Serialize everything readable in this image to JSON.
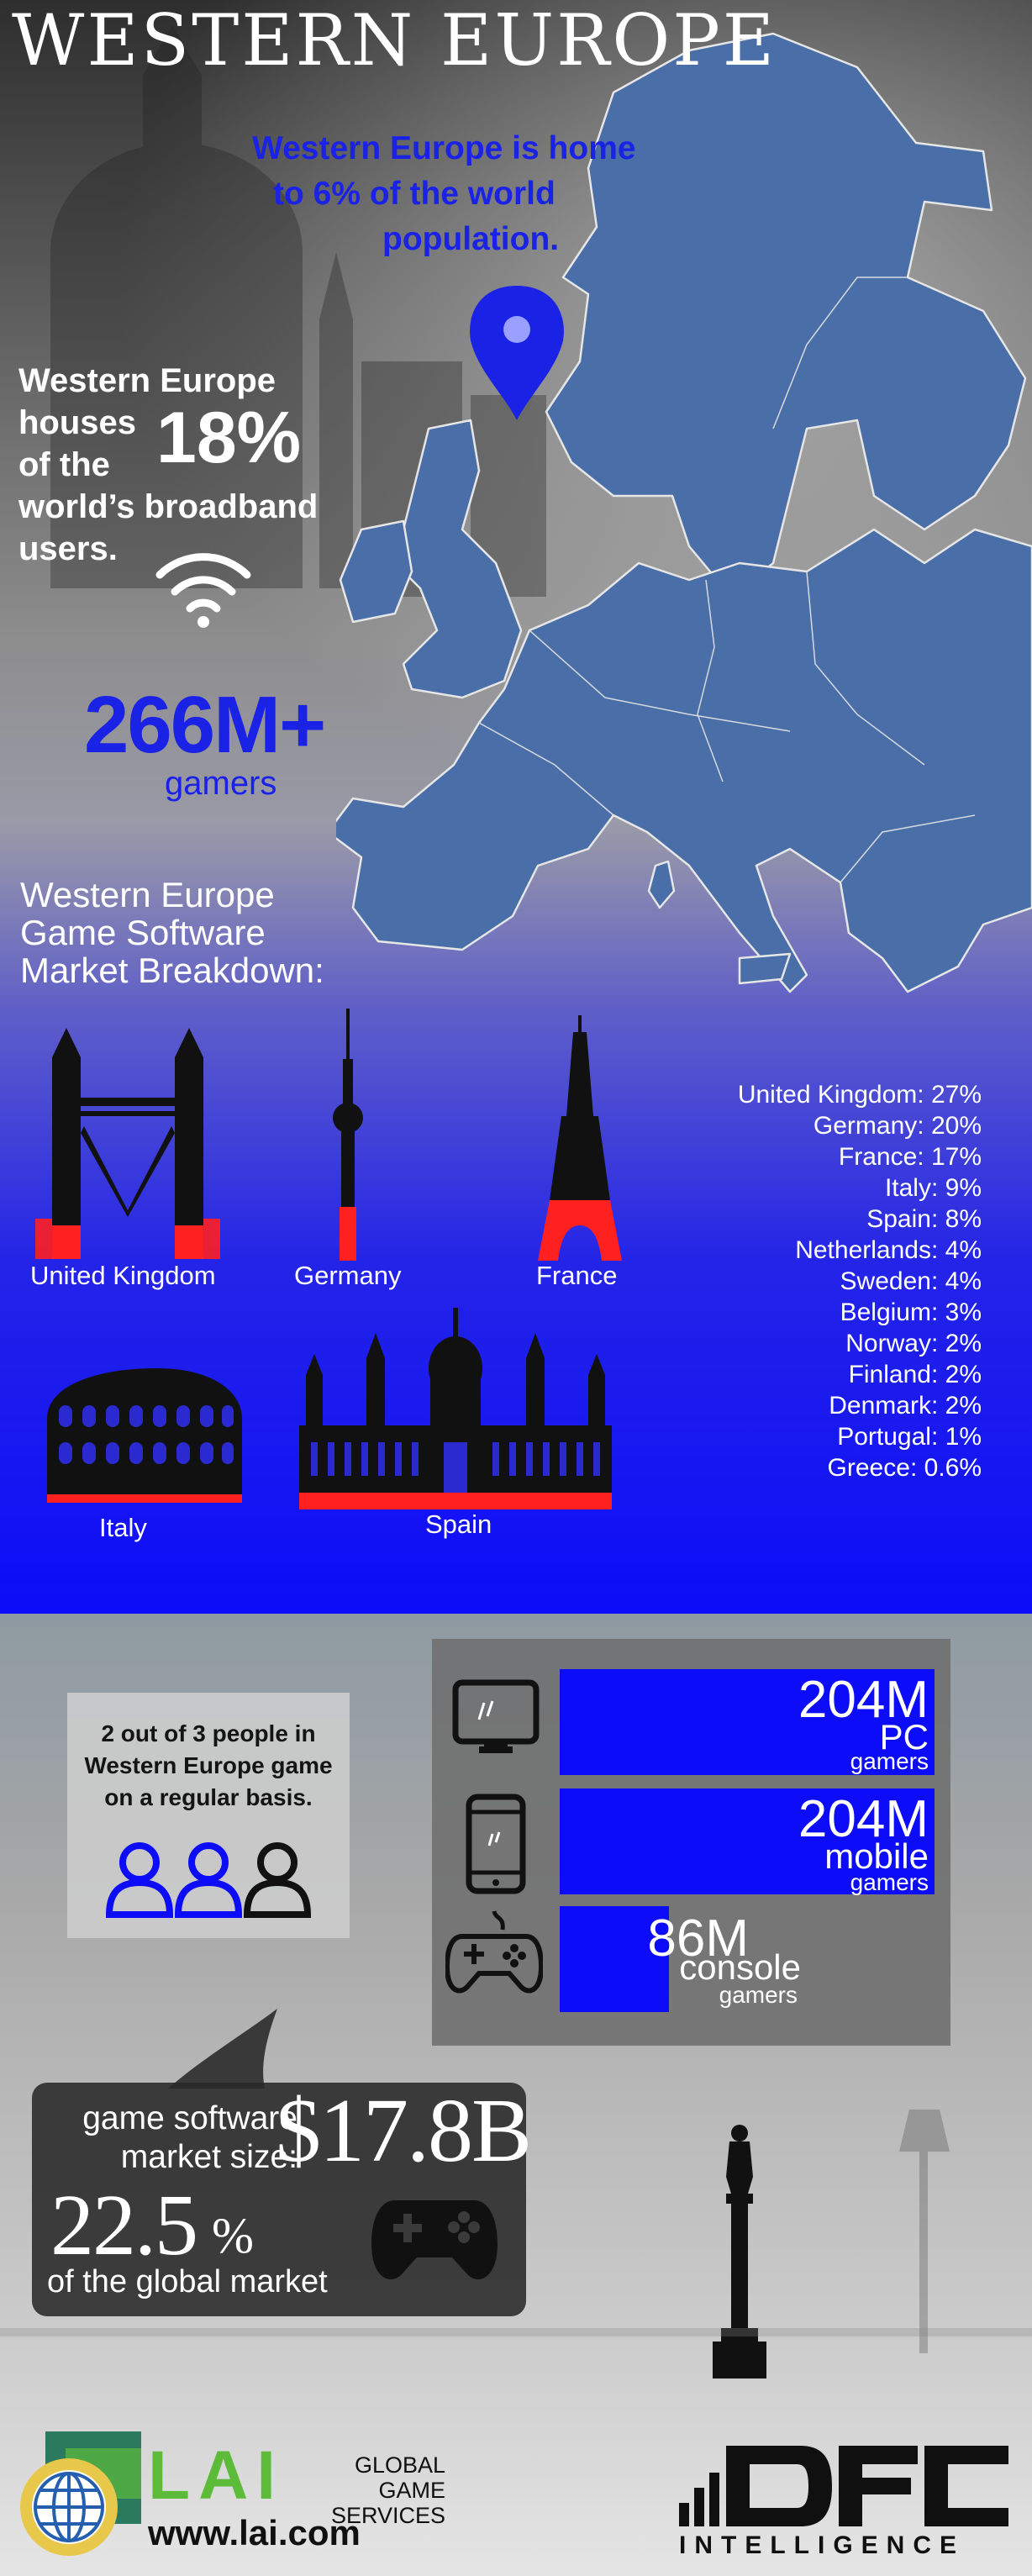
{
  "header": {
    "title": "WESTERN EUROPE",
    "population_lines": [
      "Western Europe is home",
      "to 6% of the world",
      "population."
    ]
  },
  "broadband": {
    "lines": [
      "Western Europe",
      "houses",
      "of the",
      "world’s broadband",
      "users."
    ],
    "percent": "18%"
  },
  "gamers": {
    "count": "266M+",
    "label": "gamers"
  },
  "breakdown": {
    "title_lines": [
      "Western Europe",
      "Game Software",
      "Market Breakdown:"
    ],
    "landmarks": [
      {
        "label": "United Kingdom",
        "icon": "tower-bridge-icon"
      },
      {
        "label": "Germany",
        "icon": "tv-tower-icon"
      },
      {
        "label": "France",
        "icon": "eiffel-tower-icon"
      },
      {
        "label": "Italy",
        "icon": "colosseum-icon"
      },
      {
        "label": "Spain",
        "icon": "cathedral-icon"
      }
    ],
    "shares": [
      {
        "country": "United Kingdom",
        "share": "27%"
      },
      {
        "country": "Germany",
        "share": "20%"
      },
      {
        "country": "France",
        "share": "17%"
      },
      {
        "country": "Italy",
        "share": "9%"
      },
      {
        "country": "Spain",
        "share": "8%"
      },
      {
        "country": "Netherlands",
        "share": "4%"
      },
      {
        "country": "Sweden",
        "share": "4%"
      },
      {
        "country": "Belgium",
        "share": "3%"
      },
      {
        "country": "Norway",
        "share": "2%"
      },
      {
        "country": "Finland",
        "share": "2%"
      },
      {
        "country": "Denmark",
        "share": "2%"
      },
      {
        "country": "Portugal",
        "share": "1%"
      },
      {
        "country": "Greece",
        "share": "0.6%"
      }
    ]
  },
  "engagement": {
    "lines": [
      "2 out of 3 people in",
      "Western Europe game",
      "on a regular basis."
    ],
    "people_total": 3,
    "people_highlighted": 2
  },
  "platforms": [
    {
      "value": "204M",
      "category": "PC",
      "sub": "gamers",
      "icon": "monitor-icon",
      "fill": 1.0
    },
    {
      "value": "204M",
      "category": "mobile",
      "sub": "gamers",
      "icon": "smartphone-icon",
      "fill": 1.0
    },
    {
      "value": "86M",
      "category": "console",
      "sub": "gamers",
      "icon": "gamepad-icon",
      "fill": 0.2925
    }
  ],
  "market": {
    "label_lines": [
      "game software",
      "market size:"
    ],
    "value": "$17.8B",
    "percent_number": "22.5",
    "percent_sign": "%",
    "percent_label": "of the global market"
  },
  "footer": {
    "lai_name": "LAI",
    "lai_sub_lines": [
      "GLOBAL GAME",
      "SERVICES"
    ],
    "lai_url": "www.lai.com",
    "dfc_name": "DFC",
    "dfc_sub": "INTELLIGENCE"
  },
  "colors": {
    "accent_blue": "#1a22e6",
    "bar_blue": "#0c0cf8",
    "landmark_red": "#ff2020",
    "map_fill": "#4a6ea8",
    "lai_green": "#5cbc3a"
  }
}
